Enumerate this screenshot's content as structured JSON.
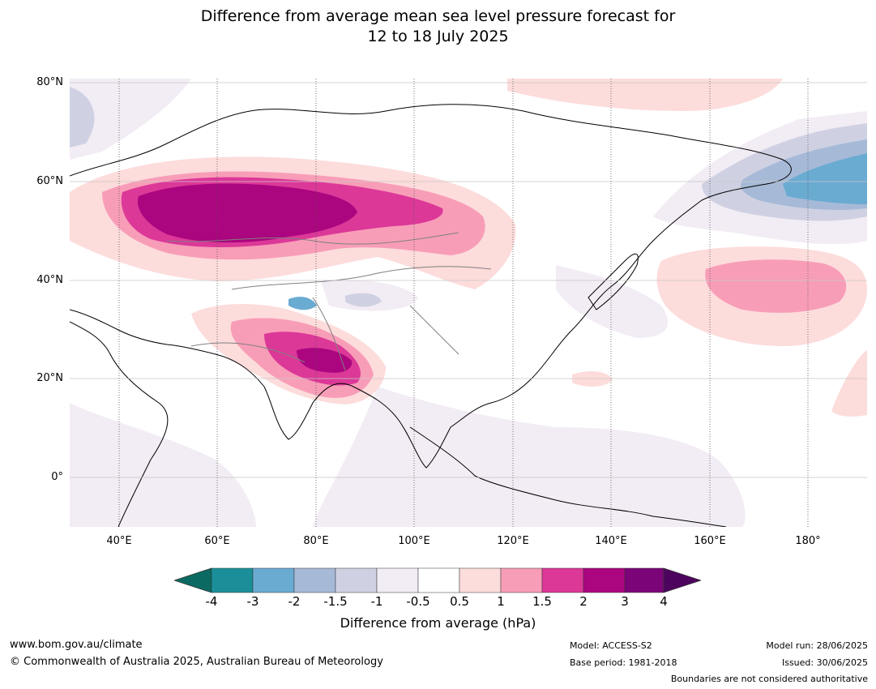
{
  "title": {
    "line1": "Difference from average mean sea level pressure forecast for",
    "line2": "12 to 18 July 2025"
  },
  "map": {
    "lat_labels": [
      "80°N",
      "60°N",
      "40°N",
      "20°N",
      "0°"
    ],
    "lon_labels": [
      "40°E",
      "60°E",
      "80°E",
      "100°E",
      "120°E",
      "140°E",
      "160°E",
      "180°"
    ],
    "extent": {
      "lon": [
        30,
        192
      ],
      "lat": [
        -10,
        81
      ]
    }
  },
  "colorbar": {
    "title": "Difference from average (hPa)",
    "ticks": [
      "-4",
      "-3",
      "-2",
      "-1.5",
      "-1",
      "-0.5",
      "0.5",
      "1",
      "1.5",
      "2",
      "3",
      "4"
    ],
    "colors": {
      "lt_-4": "#0b6b62",
      "m4_m3": "#1b8f99",
      "m3_m2": "#6aabd2",
      "m2_m15": "#a6bad8",
      "m15_m1": "#cfd1e3",
      "m1_m05": "#f2ecf4",
      "m05_05": "#ffffff",
      "p05_1": "#fddcdc",
      "p1_15": "#f89db8",
      "p15_2": "#dc3898",
      "p2_3": "#ab057f",
      "p3_4": "#7b0478",
      "gt_4": "#4d045e"
    }
  },
  "footer": {
    "website": "www.bom.gov.au/climate",
    "copyright": "© Commonwealth of Australia 2025, Australian Bureau of Meteorology",
    "model": "Model: ACCESS-S2",
    "base_period": "Base period: 1981-2018",
    "model_run": "Model run: 28/06/2025",
    "issued": "Issued: 30/06/2025",
    "boundaries": "Boundaries are not considered authoritative"
  }
}
